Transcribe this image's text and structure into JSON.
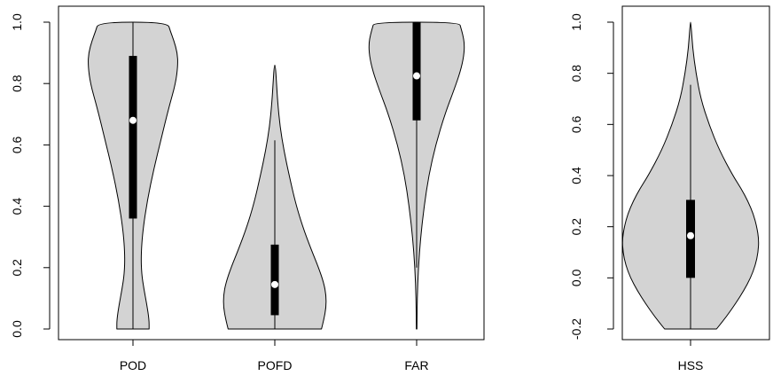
{
  "chart_data": [
    {
      "type": "violin",
      "categories": [
        "POD",
        "POFD",
        "FAR"
      ],
      "ylim": [
        0.0,
        1.0
      ],
      "yticks": [
        "0.0",
        "0.2",
        "0.4",
        "0.6",
        "0.8",
        "1.0"
      ],
      "fill_color": "#d3d3d3",
      "box_color": "#000000",
      "median_color": "#ffffff",
      "series": [
        {
          "category": "POD",
          "min": 0.0,
          "q1": 0.36,
          "median": 0.68,
          "q3": 0.89,
          "max": 1.0,
          "density": [
            [
              0.0,
              0.28
            ],
            [
              0.03,
              0.28
            ],
            [
              0.08,
              0.24
            ],
            [
              0.13,
              0.19
            ],
            [
              0.18,
              0.15
            ],
            [
              0.24,
              0.14
            ],
            [
              0.32,
              0.17
            ],
            [
              0.42,
              0.25
            ],
            [
              0.52,
              0.36
            ],
            [
              0.62,
              0.49
            ],
            [
              0.72,
              0.62
            ],
            [
              0.8,
              0.74
            ],
            [
              0.86,
              0.78
            ],
            [
              0.9,
              0.77
            ],
            [
              0.94,
              0.71
            ],
            [
              0.97,
              0.65
            ],
            [
              1.0,
              0.6
            ]
          ]
        },
        {
          "category": "POFD",
          "min": 0.0,
          "q1": 0.045,
          "median": 0.145,
          "q3": 0.275,
          "max": 0.615,
          "density": [
            [
              0.0,
              0.81
            ],
            [
              0.03,
              0.85
            ],
            [
              0.07,
              0.89
            ],
            [
              0.11,
              0.89
            ],
            [
              0.15,
              0.85
            ],
            [
              0.2,
              0.76
            ],
            [
              0.26,
              0.63
            ],
            [
              0.33,
              0.49
            ],
            [
              0.41,
              0.36
            ],
            [
              0.5,
              0.25
            ],
            [
              0.58,
              0.16
            ],
            [
              0.66,
              0.09
            ],
            [
              0.74,
              0.05
            ],
            [
              0.8,
              0.03
            ],
            [
              0.86,
              0.01
            ]
          ]
        },
        {
          "category": "FAR",
          "min": 0.2,
          "q1": 0.68,
          "median": 0.825,
          "q3": 1.0,
          "max": 1.0,
          "density": [
            [
              0.0,
              0.005
            ],
            [
              0.1,
              0.01
            ],
            [
              0.2,
              0.03
            ],
            [
              0.3,
              0.07
            ],
            [
              0.4,
              0.13
            ],
            [
              0.5,
              0.21
            ],
            [
              0.6,
              0.33
            ],
            [
              0.7,
              0.49
            ],
            [
              0.78,
              0.65
            ],
            [
              0.84,
              0.76
            ],
            [
              0.89,
              0.82
            ],
            [
              0.93,
              0.83
            ],
            [
              0.96,
              0.8
            ],
            [
              0.98,
              0.77
            ],
            [
              1.0,
              0.74
            ]
          ]
        }
      ]
    },
    {
      "type": "violin",
      "categories": [
        "HSS"
      ],
      "ylim": [
        -0.2,
        1.0
      ],
      "yticks": [
        "-0.2",
        "0.0",
        "0.2",
        "0.4",
        "0.6",
        "0.8",
        "1.0"
      ],
      "fill_color": "#d3d3d3",
      "box_color": "#000000",
      "median_color": "#ffffff",
      "series": [
        {
          "category": "HSS",
          "min": -0.2,
          "q1": 0.0,
          "median": 0.165,
          "q3": 0.305,
          "max": 0.755,
          "density": [
            [
              -0.2,
              0.38
            ],
            [
              -0.15,
              0.53
            ],
            [
              -0.1,
              0.66
            ],
            [
              -0.05,
              0.78
            ],
            [
              0.0,
              0.88
            ],
            [
              0.05,
              0.95
            ],
            [
              0.1,
              0.99
            ],
            [
              0.15,
              1.0
            ],
            [
              0.2,
              0.97
            ],
            [
              0.25,
              0.92
            ],
            [
              0.3,
              0.84
            ],
            [
              0.35,
              0.74
            ],
            [
              0.4,
              0.62
            ],
            [
              0.5,
              0.42
            ],
            [
              0.6,
              0.27
            ],
            [
              0.7,
              0.15
            ],
            [
              0.8,
              0.08
            ],
            [
              0.9,
              0.03
            ],
            [
              1.0,
              0.005
            ]
          ]
        }
      ]
    }
  ]
}
